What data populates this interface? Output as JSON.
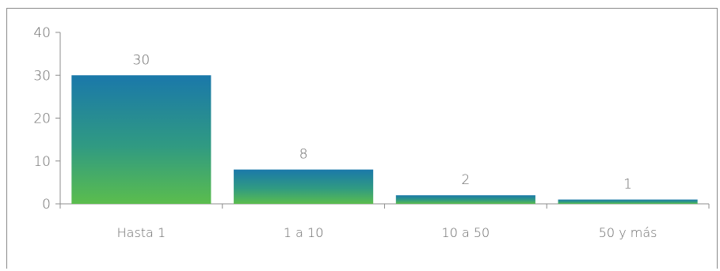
{
  "chart_data": {
    "type": "bar",
    "title": "",
    "xlabel": "",
    "ylabel": "",
    "categories": [
      "Hasta 1",
      "1 a 10",
      "10 a 50",
      "50 y más"
    ],
    "values": [
      30,
      8,
      2,
      1
    ],
    "data_labels": [
      "30",
      "8",
      "2",
      "1"
    ],
    "ylim": [
      0,
      40
    ],
    "yticks": [
      0,
      10,
      20,
      30,
      40
    ],
    "ytick_labels": [
      "0",
      "10",
      "20",
      "30",
      "40"
    ],
    "grid": false,
    "legend": "none",
    "colors": {
      "bar_top": "#1a78aa",
      "bar_bottom": "#5bbd4d",
      "axis": "#8c8c8c",
      "text": "#6b6b6b"
    }
  }
}
